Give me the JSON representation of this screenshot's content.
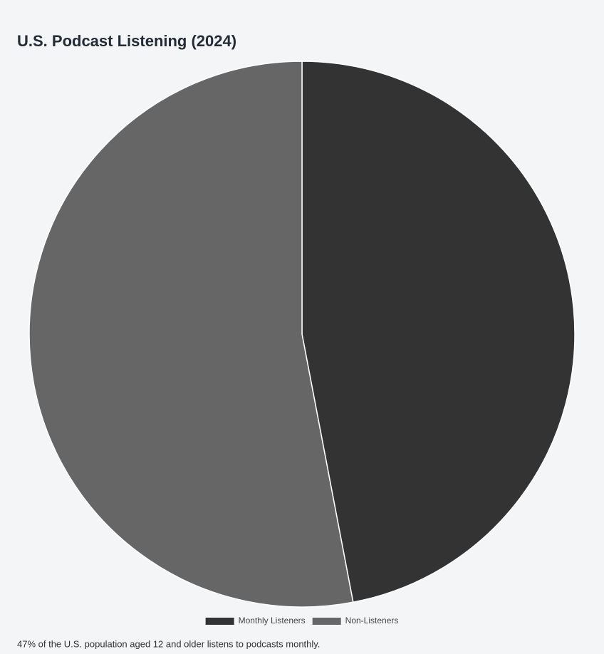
{
  "chart_data": {
    "type": "pie",
    "title": "U.S. Podcast Listening (2024)",
    "categories": [
      "Monthly Listeners",
      "Non-Listeners"
    ],
    "values": [
      47,
      53
    ],
    "colors": [
      "#333333",
      "#666666"
    ],
    "note": "47% of the U.S. population aged 12 and older listens to podcasts monthly."
  }
}
